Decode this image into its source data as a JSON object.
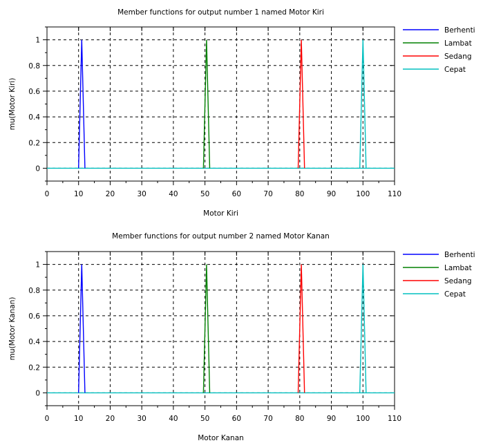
{
  "chart_data": [
    {
      "type": "line",
      "title": "Member functions for output number 1 named Motor Kiri",
      "xlabel": "Motor Kiri",
      "ylabel": "mu(Motor Kiri)",
      "xlim": [
        0,
        110
      ],
      "ylim": [
        -0.1,
        1.1
      ],
      "xticks": [
        0,
        10,
        20,
        30,
        40,
        50,
        60,
        70,
        80,
        90,
        100,
        110
      ],
      "yticks": [
        0,
        0.2,
        0.4,
        0.6,
        0.8,
        1
      ],
      "grid": true,
      "legend_position": "right",
      "series": [
        {
          "name": "Berhenti",
          "color": "#0000ff",
          "x": [
            10,
            11,
            12
          ],
          "y": [
            0,
            1,
            0
          ]
        },
        {
          "name": "Lambat",
          "color": "#008000",
          "x": [
            49.5,
            50.5,
            51.5
          ],
          "y": [
            0,
            1,
            0
          ]
        },
        {
          "name": "Sedang",
          "color": "#ff0000",
          "x": [
            79.5,
            80.5,
            81.5
          ],
          "y": [
            0,
            1,
            0
          ]
        },
        {
          "name": "Cepat",
          "color": "#00bfbf",
          "x": [
            99,
            100,
            101
          ],
          "y": [
            0,
            1,
            0
          ]
        }
      ]
    },
    {
      "type": "line",
      "title": "Member functions for output number 2 named Motor Kanan",
      "xlabel": "Motor Kanan",
      "ylabel": "mu(Motor Kanan)",
      "xlim": [
        0,
        110
      ],
      "ylim": [
        -0.1,
        1.1
      ],
      "xticks": [
        0,
        10,
        20,
        30,
        40,
        50,
        60,
        70,
        80,
        90,
        100,
        110
      ],
      "yticks": [
        0,
        0.2,
        0.4,
        0.6,
        0.8,
        1
      ],
      "grid": true,
      "legend_position": "right",
      "series": [
        {
          "name": "Berhenti",
          "color": "#0000ff",
          "x": [
            10,
            11,
            12
          ],
          "y": [
            0,
            1,
            0
          ]
        },
        {
          "name": "Lambat",
          "color": "#008000",
          "x": [
            49.5,
            50.5,
            51.5
          ],
          "y": [
            0,
            1,
            0
          ]
        },
        {
          "name": "Sedang",
          "color": "#ff0000",
          "x": [
            79.5,
            80.5,
            81.5
          ],
          "y": [
            0,
            1,
            0
          ]
        },
        {
          "name": "Cepat",
          "color": "#00bfbf",
          "x": [
            99,
            100,
            101
          ],
          "y": [
            0,
            1,
            0
          ]
        }
      ]
    }
  ]
}
